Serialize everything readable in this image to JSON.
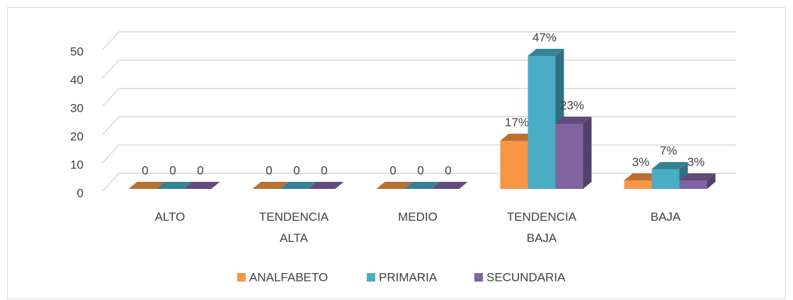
{
  "chart_data": {
    "type": "bar3d",
    "categories": [
      "ALTO",
      "TENDENCIA ALTA",
      "MEDIO",
      "TENDENCIA BAJA",
      "BAJA"
    ],
    "series": [
      {
        "name": "ANALFABETO",
        "color": "#f79646",
        "values": [
          0,
          0,
          0,
          17,
          3
        ],
        "value_labels": [
          "0",
          "0",
          "0",
          "17%",
          "3%"
        ]
      },
      {
        "name": "PRIMARIA",
        "color": "#4bacc6",
        "values": [
          0,
          0,
          0,
          47,
          7
        ],
        "value_labels": [
          "0",
          "0",
          "0",
          "47%",
          "7%"
        ]
      },
      {
        "name": "SECUNDARIA",
        "color": "#8064a2",
        "values": [
          0,
          0,
          0,
          23,
          3
        ],
        "value_labels": [
          "0",
          "0",
          "0",
          "23%",
          "3%"
        ]
      }
    ],
    "ylim": [
      0,
      50
    ],
    "yticks": [
      0,
      10,
      20,
      30,
      40,
      50
    ],
    "grid": true,
    "legend": "bottom"
  }
}
